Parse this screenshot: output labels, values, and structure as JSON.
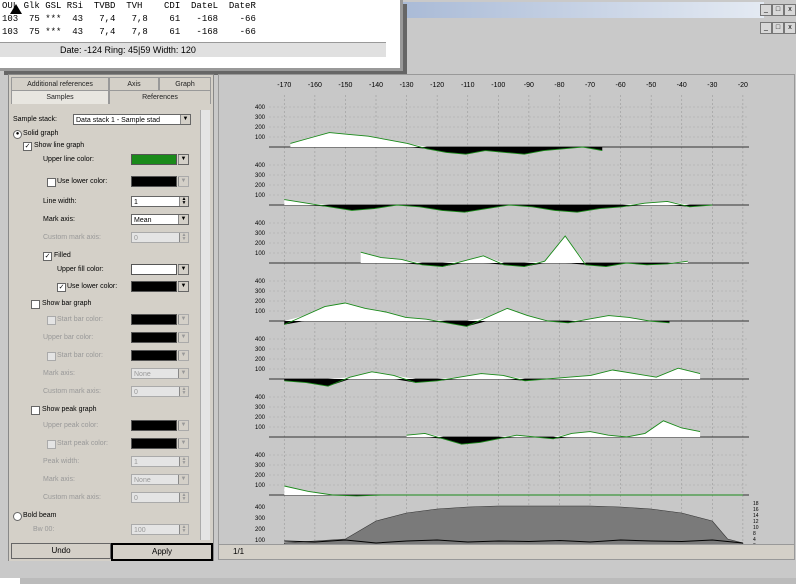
{
  "popup": {
    "header_row": "OUL Glk GSL RSi  TVBD  TVH    CDI  DateL  DateR",
    "rows": [
      "103  75 ***  43   7,4   7,8    61   -168    -66",
      "103  75 ***  43   7,4   7,8    61   -168    -66"
    ],
    "status": "Date: -124  Ring: 45|59  Width: 120"
  },
  "window": {
    "title": "]",
    "buttons": [
      "_",
      "□",
      "x"
    ]
  },
  "tabs": {
    "row1": [
      "Additional references",
      "Axis",
      "Graph"
    ],
    "row2": [
      "Samples",
      "References"
    ],
    "active": "Samples"
  },
  "form": {
    "sample_stack_label": "Sample stack:",
    "sample_stack_value": "Data stack 1 - Sample stad",
    "solid_graph": "Solid graph",
    "show_line_graph": "Show line graph",
    "upper_line_color": "Upper line color:",
    "use_lower_color": "Use lower color:",
    "line_width_label": "Line width:",
    "line_width_value": "1",
    "mark_axis_label": "Mark axis:",
    "mark_axis_value": "Mean",
    "custom_mark_axis": "Custom mark axis:",
    "custom_mark_value": "0",
    "filled": "Filled",
    "upper_fill_color": "Upper fill color:",
    "use_lower_color2": "Use lower color:",
    "show_bar_graph": "Show bar graph",
    "start_bar_color": "Start bar color:",
    "upper_bar_color": "Upper bar color:",
    "start_bar_color2": "Start bar color:",
    "mark_axis2_label": "Mark axis:",
    "mark_axis2_value": "None",
    "custom_mark_axis2": "Custom mark axis:",
    "custom_mark2_value": "0",
    "show_peak_graph": "Show peak graph",
    "upper_peak_color": "Upper peak color:",
    "start_peak_color": "Start peak color:",
    "peak_width_label": "Peak width:",
    "peak_width_value": "1",
    "mark_axis3_label": "Mark axis:",
    "mark_axis3_value": "None",
    "custom_mark_axis3": "Custom mark axis:",
    "custom_mark3_value": "0",
    "bold_beam": "Bold beam",
    "bw_label": "Bw 00:",
    "bw_value": "100"
  },
  "buttons": {
    "undo": "Undo",
    "apply": "Apply"
  },
  "bottom_bar": {
    "page": "1/1"
  },
  "colors": {
    "upper_line": "#1a8a1a",
    "lower": "#000000",
    "upper_fill": "#ffffff",
    "chart_bg": "#c8c8c8",
    "gray_area": "#7a7a7a"
  },
  "chart_data": {
    "type": "line",
    "x_ticks": [
      "-170",
      "-160",
      "-150",
      "-140",
      "-130",
      "-120",
      "-110",
      "-100",
      "-90",
      "-80",
      "-70",
      "-60",
      "-50",
      "-40",
      "-30",
      "-20"
    ],
    "y_ticks_panel": [
      "400",
      "300",
      "200",
      "100"
    ],
    "bottom_y_ticks": [
      "400",
      "300",
      "200",
      "100"
    ],
    "right_y_ticks": [
      "18",
      "16",
      "14",
      "12",
      "10",
      "8",
      "4",
      "0"
    ],
    "panels": [
      {
        "start": -168,
        "end": -66,
        "values": [
          120,
          150,
          180,
          170,
          160,
          140,
          120,
          90,
          70,
          60,
          80,
          70,
          60,
          80,
          90,
          100,
          80
        ]
      },
      {
        "start": -170,
        "end": -30,
        "values": [
          130,
          110,
          90,
          70,
          80,
          100,
          90,
          70,
          60,
          80,
          100,
          90,
          70,
          60,
          80,
          90,
          110,
          120,
          90,
          100
        ]
      },
      {
        "start": -145,
        "end": -38,
        "values": [
          160,
          130,
          120,
          90,
          80,
          110,
          140,
          90,
          80,
          110,
          250,
          90,
          80,
          100,
          90,
          95,
          110
        ]
      },
      {
        "start": -170,
        "end": -44,
        "values": [
          80,
          130,
          180,
          200,
          170,
          150,
          120,
          110,
          90,
          70,
          120,
          170,
          130,
          100,
          90,
          110,
          130,
          120,
          100,
          90
        ]
      },
      {
        "start": -170,
        "end": -34,
        "values": [
          90,
          80,
          60,
          110,
          140,
          120,
          80,
          90,
          110,
          130,
          120,
          90,
          100,
          110,
          120,
          150,
          130,
          110,
          160,
          130
        ]
      },
      {
        "start": -130,
        "end": -34,
        "values": [
          110,
          120,
          90,
          60,
          70,
          90,
          110,
          100,
          90,
          120,
          130,
          110,
          100,
          120,
          190,
          150,
          130
        ]
      },
      {
        "start": -170,
        "end": -20,
        "values": [
          150,
          120,
          100,
          95,
          100,
          100,
          100,
          100,
          100,
          100,
          100,
          100,
          100,
          100,
          100,
          100,
          100,
          100,
          100,
          100
        ]
      }
    ],
    "bottom_area": {
      "x": [
        -170,
        -150,
        -140,
        -130,
        -120,
        -110,
        -100,
        -90,
        -80,
        -70,
        -60,
        -50,
        -40,
        -30,
        -25,
        -20
      ],
      "values": [
        80,
        120,
        300,
        380,
        420,
        440,
        450,
        450,
        450,
        450,
        440,
        420,
        380,
        300,
        120,
        80
      ]
    },
    "bottom_line": {
      "values": [
        100,
        90,
        110,
        80,
        100,
        110,
        90,
        100,
        95,
        105,
        90,
        110,
        100,
        95,
        110,
        80
      ]
    }
  }
}
